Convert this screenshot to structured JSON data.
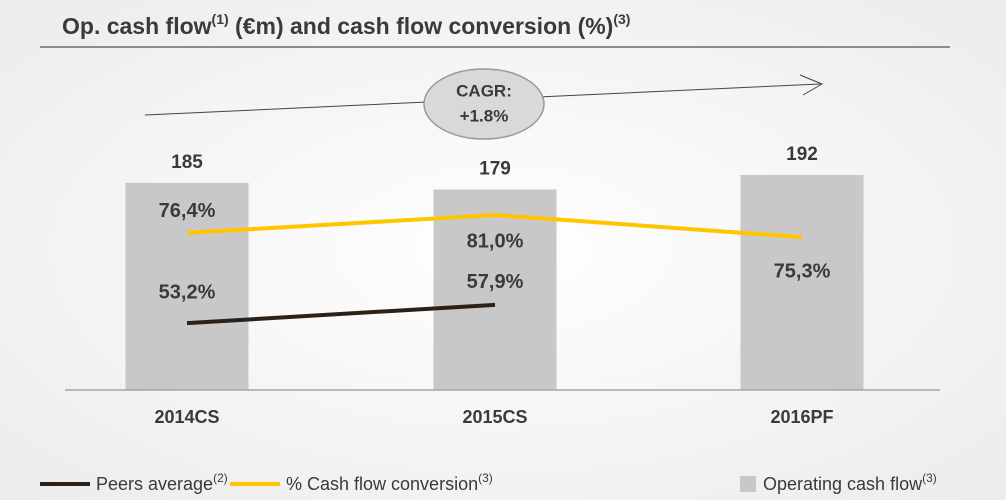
{
  "chart_data": {
    "type": "bar",
    "title_parts": [
      "Op. cash flow",
      "(1)",
      " (€m) and cash flow conversion (%)",
      "(3)"
    ],
    "annotation": [
      "CAGR:",
      "+1.8%"
    ],
    "categories": [
      "2014CS",
      "2015CS",
      "2016PF"
    ],
    "ylim": [
      0,
      250
    ],
    "y2lim": [
      36,
      108
    ],
    "series": [
      {
        "name": "Peers average",
        "note": "(2)",
        "type": "line",
        "axis": "y2",
        "color": "#2b2118",
        "values": [
          53.2,
          57.9,
          null
        ],
        "value_labels": [
          "53,2%",
          "57,9%",
          null
        ]
      },
      {
        "name": "% Cash flow conversion",
        "note": "(3)",
        "type": "line",
        "axis": "y2",
        "color": "#ffc600",
        "values": [
          76.4,
          81.0,
          75.3
        ],
        "value_labels": [
          "76,4%",
          "81,0%",
          "75,3%"
        ]
      },
      {
        "name": "Operating cash flow",
        "note": "(3)",
        "type": "bar",
        "color": "#c8c8c8",
        "values": [
          185,
          179,
          192
        ]
      }
    ]
  }
}
